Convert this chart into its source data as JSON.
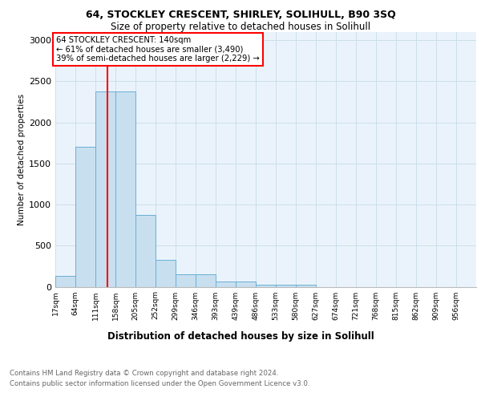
{
  "title1": "64, STOCKLEY CRESCENT, SHIRLEY, SOLIHULL, B90 3SQ",
  "title2": "Size of property relative to detached houses in Solihull",
  "xlabel": "Distribution of detached houses by size in Solihull",
  "ylabel": "Number of detached properties",
  "bin_labels": [
    "17sqm",
    "64sqm",
    "111sqm",
    "158sqm",
    "205sqm",
    "252sqm",
    "299sqm",
    "346sqm",
    "393sqm",
    "439sqm",
    "486sqm",
    "533sqm",
    "580sqm",
    "627sqm",
    "674sqm",
    "721sqm",
    "768sqm",
    "815sqm",
    "862sqm",
    "909sqm",
    "956sqm"
  ],
  "bin_edges": [
    17,
    64,
    111,
    158,
    205,
    252,
    299,
    346,
    393,
    439,
    486,
    533,
    580,
    627,
    674,
    721,
    768,
    815,
    862,
    909,
    956,
    1003
  ],
  "bar_values": [
    130,
    1700,
    2380,
    2380,
    870,
    330,
    150,
    150,
    60,
    60,
    20,
    20,
    20,
    0,
    0,
    0,
    0,
    0,
    0,
    0,
    0
  ],
  "bar_color": "#c8dff0",
  "bar_edgecolor": "#6aafd6",
  "vline_x": 140,
  "vline_color": "red",
  "annotation_text": "64 STOCKLEY CRESCENT: 140sqm\n← 61% of detached houses are smaller (3,490)\n39% of semi-detached houses are larger (2,229) →",
  "annotation_box_color": "white",
  "annotation_box_edgecolor": "red",
  "ylim": [
    0,
    3100
  ],
  "yticks": [
    0,
    500,
    1000,
    1500,
    2000,
    2500,
    3000
  ],
  "footer1": "Contains HM Land Registry data © Crown copyright and database right 2024.",
  "footer2": "Contains public sector information licensed under the Open Government Licence v3.0.",
  "bg_color": "#eaf3fb",
  "grid_color": "#c8dce8"
}
